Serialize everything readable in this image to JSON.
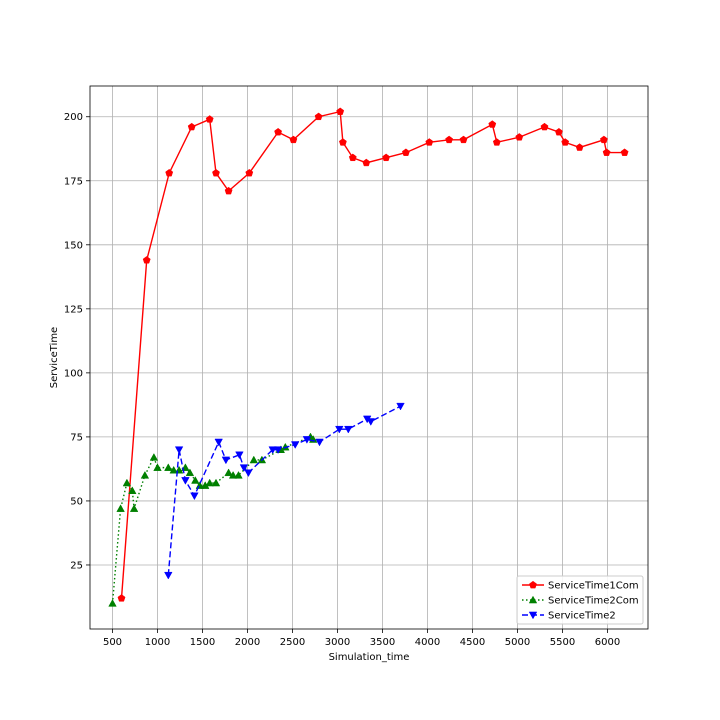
{
  "chart_data": {
    "type": "line",
    "title": "",
    "xlabel": "Simulation_time",
    "ylabel": "ServiceTime",
    "xlim": [
      250,
      6450
    ],
    "ylim": [
      0,
      212
    ],
    "xticks": [
      500,
      1000,
      1500,
      2000,
      2500,
      3000,
      3500,
      4000,
      4500,
      5000,
      5500,
      6000
    ],
    "yticks": [
      25,
      50,
      75,
      100,
      125,
      150,
      175,
      200
    ],
    "grid": true,
    "legend_position": "lower right",
    "series": [
      {
        "name": "ServiceTime1Com",
        "color": "#ff0000",
        "dash": "solid",
        "marker": "pentagon",
        "x": [
          600,
          880,
          1130,
          1380,
          1580,
          1650,
          1790,
          2020,
          2340,
          2510,
          2790,
          3030,
          3060,
          3170,
          3320,
          3540,
          3760,
          4020,
          4240,
          4400,
          4720,
          4770,
          5020,
          5300,
          5460,
          5530,
          5690,
          5960,
          5990,
          6190
        ],
        "y": [
          12,
          144,
          178,
          196,
          199,
          178,
          171,
          178,
          194,
          191,
          200,
          202,
          190,
          184,
          182,
          184,
          186,
          190,
          191,
          191,
          197,
          190,
          192,
          196,
          194,
          190,
          188,
          191,
          186,
          186
        ]
      },
      {
        "name": "ServiceTime2Com",
        "color": "#008000",
        "dash": "dotted",
        "marker": "triangle-up",
        "x": [
          500,
          590,
          660,
          720,
          740,
          860,
          960,
          1000,
          1120,
          1180,
          1240,
          1310,
          1360,
          1420,
          1470,
          1530,
          1580,
          1650,
          1790,
          1840,
          1900,
          2070,
          2160,
          2370,
          2420,
          2700,
          2730
        ],
        "y": [
          10,
          47,
          57,
          54,
          47,
          60,
          67,
          63,
          63,
          62,
          62,
          63,
          61,
          58,
          56,
          56,
          57,
          57,
          61,
          60,
          60,
          66,
          66,
          70,
          71,
          75,
          74
        ],
        "sort": false
      },
      {
        "name": "ServiceTime2",
        "color": "#0000ff",
        "dash": "dashed",
        "marker": "triangle-down",
        "x": [
          1120,
          1240,
          1310,
          1410,
          1680,
          1760,
          1910,
          1960,
          2010,
          2280,
          2340,
          2530,
          2660,
          2800,
          3020,
          3120,
          3330,
          3370,
          3700
        ],
        "y": [
          21,
          70,
          58,
          52,
          73,
          66,
          68,
          63,
          61,
          70,
          70,
          72,
          74,
          73,
          78,
          78,
          82,
          81,
          87
        ]
      }
    ]
  }
}
